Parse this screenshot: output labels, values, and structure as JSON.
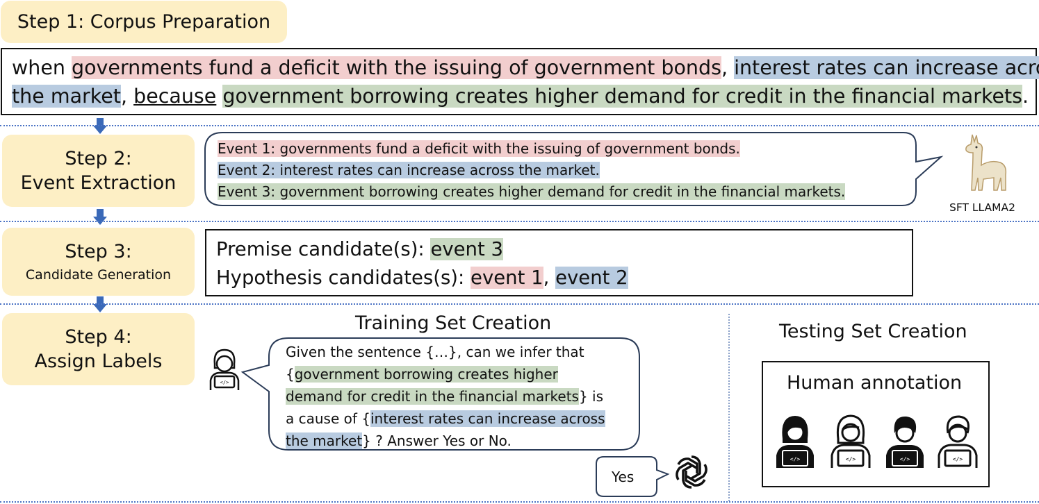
{
  "step1": {
    "label": "Step 1: Corpus Preparation"
  },
  "sentence": {
    "w1": "when ",
    "cause_clause": "governments fund a deficit with the issuing of government bonds",
    "w2": ", ",
    "effect_clause_a": "interest rates can increase across",
    "effect_clause_b": "the market",
    "w3": ", ",
    "connective": "because",
    "w4": " ",
    "reason_clause": "government borrowing creates higher demand for credit in the financial markets",
    "w5": "."
  },
  "step2": {
    "line1": "Step 2:",
    "line2": "Event Extraction",
    "event1": "Event 1: governments fund a deficit with the issuing of government bonds.",
    "event2": "Event 2: interest rates can increase across the market.",
    "event3": "Event 3: government borrowing creates higher demand for credit in the financial markets.",
    "model_label": "SFT LLAMA2",
    "model_icon": "llama-icon"
  },
  "step3": {
    "line1": "Step 3:",
    "line2": "Candidate Generation",
    "premise_label": "Premise candidate(s): ",
    "premise_value": "event 3",
    "hypothesis_label": "Hypothesis candidates(s): ",
    "hypothesis_value1": "event 1",
    "hypothesis_sep": ", ",
    "hypothesis_value2": "event 2"
  },
  "step4": {
    "line1": "Step 4:",
    "line2": "Assign Labels",
    "training_title": "Training Set Creation",
    "testing_title": "Testing Set Creation",
    "prompt": {
      "p1": " Given the sentence {…}, can we infer that",
      "p2a": "{",
      "p2b": "government borrowing creates higher",
      "p3": "demand for credit in the financial markets",
      "p3b": "} is",
      "p4a": "a cause of {",
      "p4b": "interest rates can increase across",
      "p5a": "the market",
      "p5b": "} ? Answer Yes or No."
    },
    "answer": "Yes",
    "human_annotation": "Human annotation",
    "icons": [
      "developer-icon",
      "openai-icon"
    ]
  }
}
